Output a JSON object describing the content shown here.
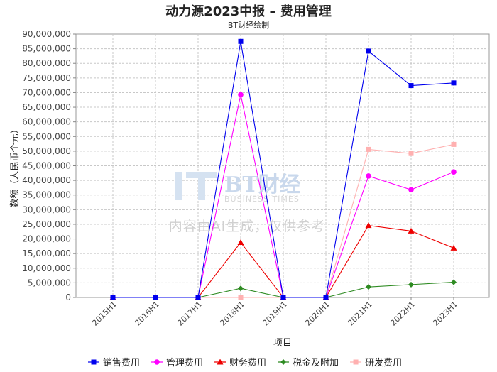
{
  "title": "动力源2023中报 – 费用管理",
  "subtitle": "BT财经绘制",
  "watermark": {
    "brand": "BT财经",
    "brand_en": "BUSINESS TIMES",
    "notice": "内容由AI生成，仅供参考"
  },
  "chart_data": {
    "type": "line",
    "xlabel": "项目",
    "ylabel": "数额（人民币个元）",
    "ylim": [
      0,
      90000000
    ],
    "ytick_step": 5000000,
    "grid": true,
    "legend_position": "bottom",
    "categories": [
      "2015H1",
      "2016H1",
      "2017H1",
      "2018H1",
      "2019H1",
      "2020H1",
      "2021H1",
      "2022H1",
      "2023H1"
    ],
    "series": [
      {
        "name": "销售费用",
        "color": "#0000ee",
        "marker": "square",
        "values": [
          0,
          0,
          0,
          87500000,
          0,
          0,
          84200000,
          72400000,
          73300000
        ]
      },
      {
        "name": "管理费用",
        "color": "#ff00ff",
        "marker": "circle",
        "values": [
          0,
          0,
          0,
          69300000,
          0,
          0,
          41500000,
          36800000,
          42900000
        ]
      },
      {
        "name": "财务费用",
        "color": "#ee0000",
        "marker": "triangle",
        "values": [
          0,
          0,
          0,
          18800000,
          0,
          0,
          24600000,
          22700000,
          16900000
        ]
      },
      {
        "name": "税金及附加",
        "color": "#2e8b22",
        "marker": "diamond",
        "values": [
          0,
          0,
          0,
          3100000,
          0,
          0,
          3600000,
          4400000,
          5200000
        ]
      },
      {
        "name": "研发费用",
        "color": "#ffb0b0",
        "marker": "square",
        "values": [
          0,
          0,
          0,
          0,
          0,
          0,
          50600000,
          49200000,
          52300000
        ]
      }
    ]
  }
}
